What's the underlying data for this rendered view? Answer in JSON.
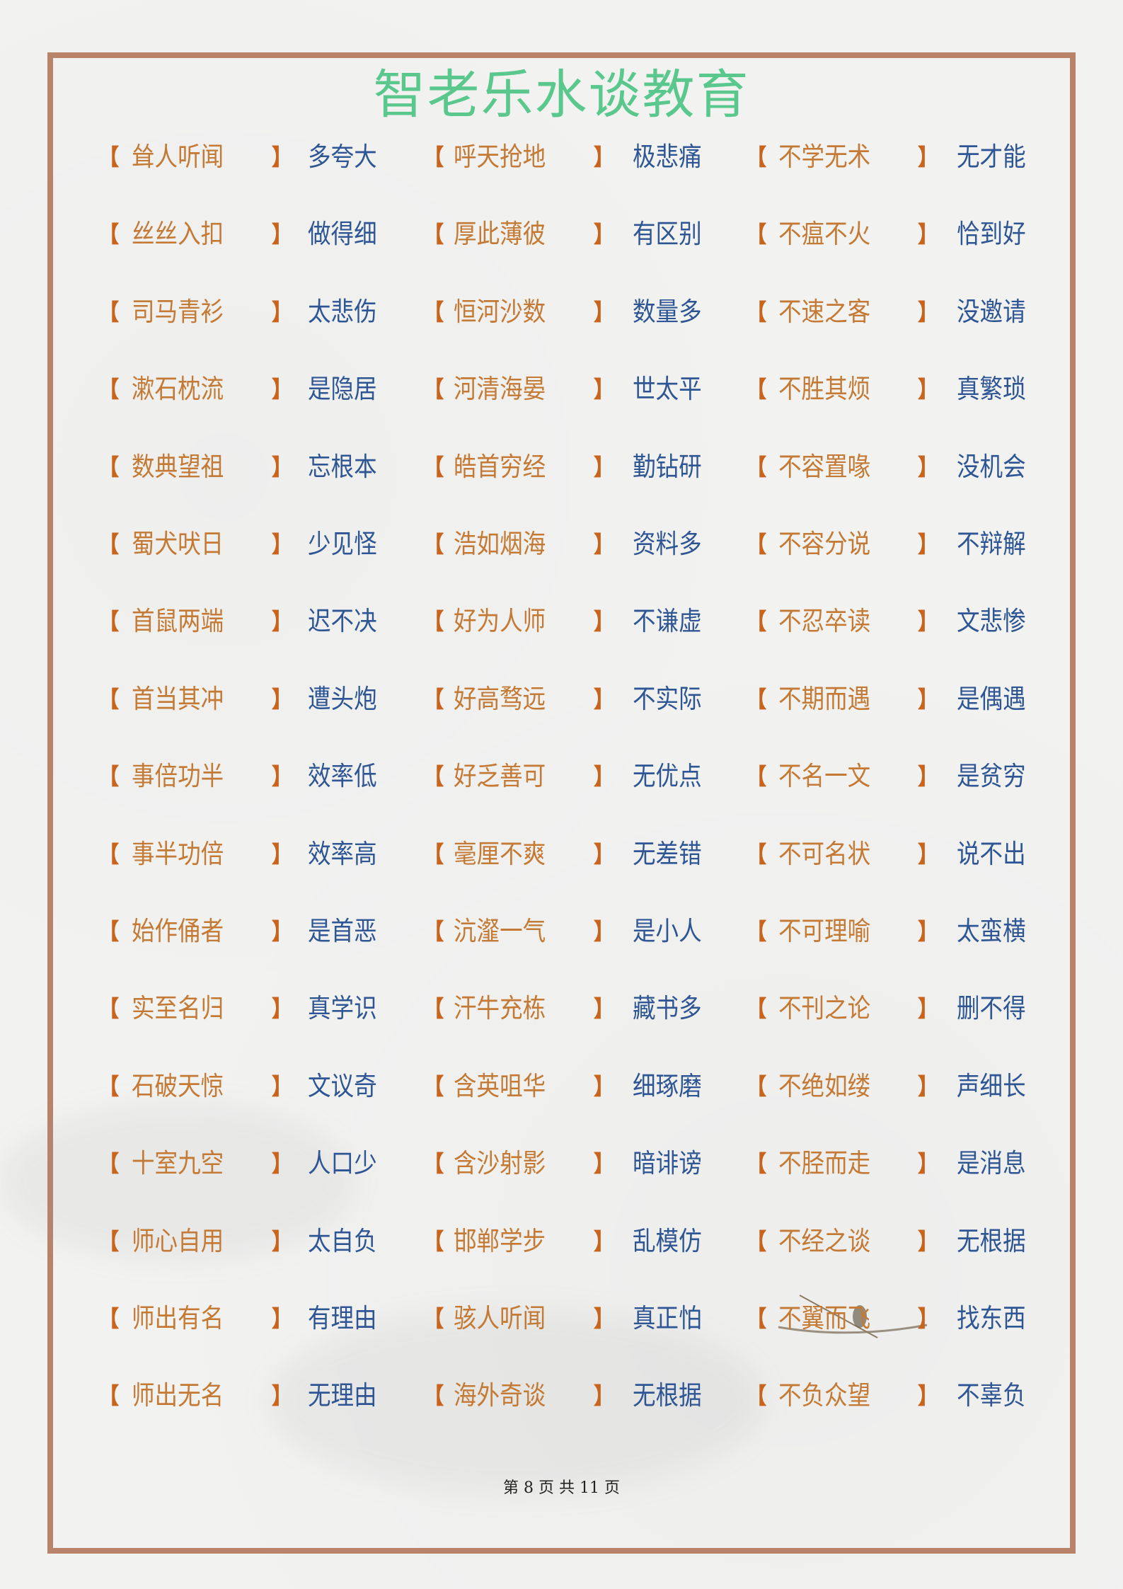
{
  "bracket_open": "【",
  "bracket_close": "】",
  "rows": [
    [
      [
        "耸人听闻",
        "多夸大"
      ],
      [
        "呼天抢地",
        "极悲痛"
      ],
      [
        "不学无术",
        "无才能"
      ]
    ],
    [
      [
        "丝丝入扣",
        "做得细"
      ],
      [
        "厚此薄彼",
        "有区别"
      ],
      [
        "不瘟不火",
        "恰到好"
      ]
    ],
    [
      [
        "司马青衫",
        "太悲伤"
      ],
      [
        "恒河沙数",
        "数量多"
      ],
      [
        "不速之客",
        "没邀请"
      ]
    ],
    [
      [
        "漱石枕流",
        "是隐居"
      ],
      [
        "河清海晏",
        "世太平"
      ],
      [
        "不胜其烦",
        "真繁琐"
      ]
    ],
    [
      [
        "数典望祖",
        "忘根本"
      ],
      [
        "皓首穷经",
        "勤钻研"
      ],
      [
        "不容置喙",
        "没机会"
      ]
    ],
    [
      [
        "蜀犬吠日",
        "少见怪"
      ],
      [
        "浩如烟海",
        "资料多"
      ],
      [
        "不容分说",
        "不辩解"
      ]
    ],
    [
      [
        "首鼠两端",
        "迟不决"
      ],
      [
        "好为人师",
        "不谦虚"
      ],
      [
        "不忍卒读",
        "文悲惨"
      ]
    ],
    [
      [
        "首当其冲",
        "遭头炮"
      ],
      [
        "好高骛远",
        "不实际"
      ],
      [
        "不期而遇",
        "是偶遇"
      ]
    ],
    [
      [
        "事倍功半",
        "效率低"
      ],
      [
        "好乏善可",
        "无优点"
      ],
      [
        "不名一文",
        "是贫穷"
      ]
    ],
    [
      [
        "事半功倍",
        "效率高"
      ],
      [
        "毫厘不爽",
        "无差错"
      ],
      [
        "不可名状",
        "说不出"
      ]
    ],
    [
      [
        "始作俑者",
        "是首恶"
      ],
      [
        "沆瀣一气",
        "是小人"
      ],
      [
        "不可理喻",
        "太蛮横"
      ]
    ],
    [
      [
        "实至名归",
        "真学识"
      ],
      [
        "汗牛充栋",
        "藏书多"
      ],
      [
        "不刊之论",
        "删不得"
      ]
    ],
    [
      [
        "石破天惊",
        "文议奇"
      ],
      [
        "含英咀华",
        "细琢磨"
      ],
      [
        "不绝如缕",
        "声细长"
      ]
    ],
    [
      [
        "十室九空",
        "人口少"
      ],
      [
        "含沙射影",
        "暗诽谤"
      ],
      [
        "不胫而走",
        "是消息"
      ]
    ],
    [
      [
        "师心自用",
        "太自负"
      ],
      [
        "邯郸学步",
        "乱模仿"
      ],
      [
        "不经之谈",
        "无根据"
      ]
    ],
    [
      [
        "师出有名",
        "有理由"
      ],
      [
        "骇人听闻",
        "真正怕"
      ],
      [
        "不翼而飞",
        "找东西"
      ]
    ],
    [
      [
        "师出无名",
        "无理由"
      ],
      [
        "海外奇谈",
        "无根据"
      ],
      [
        "不负众望",
        "不辜负"
      ]
    ]
  ],
  "watermark": "智老乐水谈教育",
  "footer": "第 8 页 共 11 页",
  "colors": {
    "idiom": "#c47a35",
    "bracket": "#c8641c",
    "meaning": "#2f5694",
    "frame": "#b9836a",
    "watermark": "#5ac88c"
  }
}
